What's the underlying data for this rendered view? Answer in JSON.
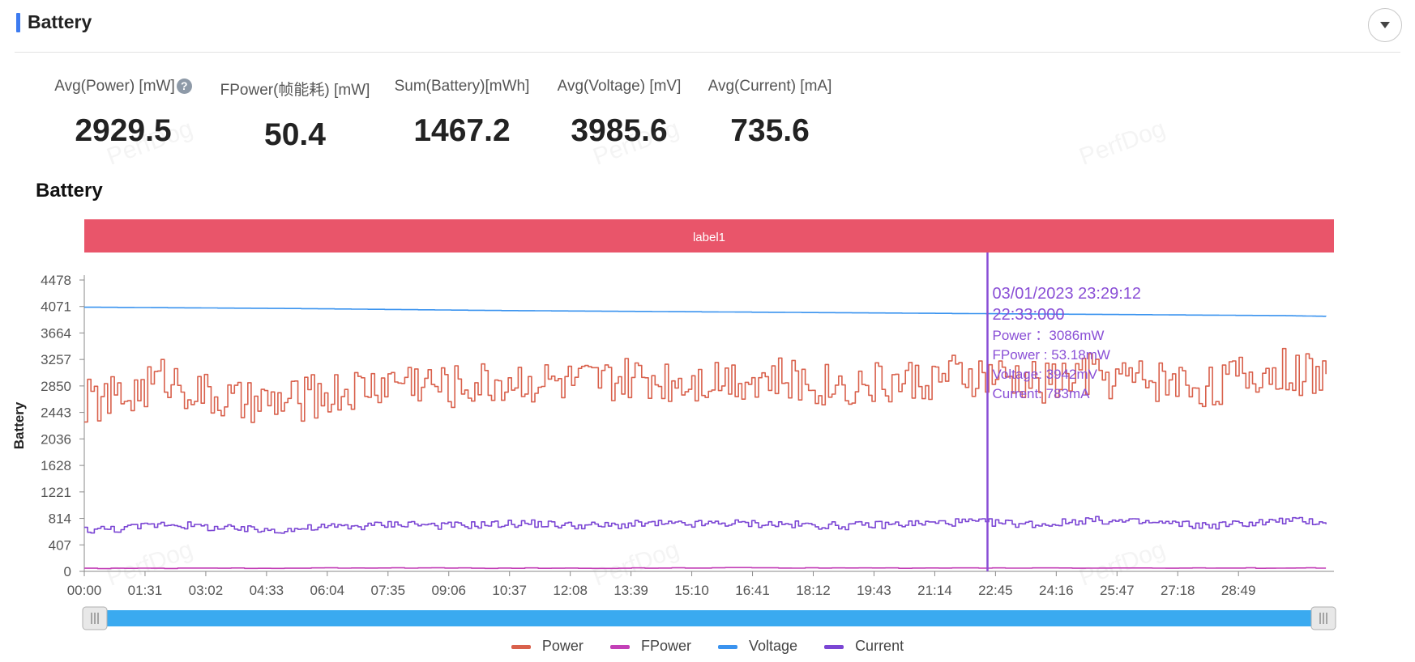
{
  "header": {
    "title": "Battery"
  },
  "metrics": [
    {
      "label": "Avg(Power) [mW]",
      "value": "2929.5",
      "help": true
    },
    {
      "label": "FPower(帧能耗) [mW]",
      "value": "50.4"
    },
    {
      "label": "Sum(Battery)[mWh]",
      "value": "1467.2"
    },
    {
      "label": "Avg(Voltage) [mV]",
      "value": "3985.6"
    },
    {
      "label": "Avg(Current) [mA]",
      "value": "735.6"
    }
  ],
  "watermark": "PerfDog",
  "chart_data": {
    "type": "line",
    "title": "Battery",
    "ylabel": "Battery",
    "xlabel": "",
    "label_band": {
      "text": "label1",
      "color": "#e9556a"
    },
    "x_ticks": [
      "00:00",
      "01:31",
      "03:02",
      "04:33",
      "06:04",
      "07:35",
      "09:06",
      "10:37",
      "12:08",
      "13:39",
      "15:10",
      "16:41",
      "18:12",
      "19:43",
      "21:14",
      "22:45",
      "24:16",
      "25:47",
      "27:18",
      "28:49"
    ],
    "x_range_seconds": [
      0,
      1872
    ],
    "y_ticks": [
      0,
      407,
      814,
      1221,
      1628,
      2036,
      2443,
      2850,
      3257,
      3664,
      4071,
      4478
    ],
    "ylim": [
      0,
      4478
    ],
    "grid": false,
    "legend_position": "bottom",
    "series": [
      {
        "name": "Power",
        "color": "#d9614c",
        "t": [
          0,
          60,
          120,
          180,
          240,
          300,
          360,
          420,
          480,
          540,
          600,
          660,
          720,
          780,
          840,
          900,
          960,
          1020,
          1080,
          1140,
          1200,
          1260,
          1320,
          1380,
          1440,
          1500,
          1560,
          1620,
          1680,
          1740,
          1800,
          1860
        ],
        "values": [
          2600,
          2680,
          3000,
          2700,
          2550,
          2600,
          2720,
          2820,
          2980,
          2840,
          2900,
          2950,
          2880,
          2900,
          2960,
          2950,
          3000,
          2970,
          2900,
          2880,
          2900,
          2950,
          3000,
          2950,
          2900,
          3040,
          2960,
          2950,
          2850,
          3000,
          3100,
          2950
        ]
      },
      {
        "name": "FPower",
        "color": "#c340b7",
        "t": [
          0,
          240,
          480,
          720,
          960,
          1200,
          1440,
          1680,
          1860
        ],
        "values": [
          45,
          50,
          52,
          48,
          55,
          50,
          53,
          50,
          52
        ]
      },
      {
        "name": "Voltage",
        "color": "#3a93ef",
        "t": [
          0,
          300,
          600,
          900,
          1200,
          1500,
          1800,
          1860
        ],
        "values": [
          4060,
          4040,
          4010,
          3990,
          3970,
          3950,
          3930,
          3920
        ]
      },
      {
        "name": "Current",
        "color": "#7b46d4",
        "t": [
          0,
          60,
          120,
          180,
          240,
          300,
          360,
          420,
          480,
          540,
          600,
          660,
          720,
          780,
          840,
          900,
          960,
          1020,
          1080,
          1140,
          1200,
          1260,
          1320,
          1380,
          1440,
          1500,
          1560,
          1620,
          1680,
          1740,
          1800,
          1860
        ],
        "values": [
          640,
          660,
          740,
          680,
          640,
          640,
          680,
          700,
          740,
          700,
          720,
          740,
          710,
          700,
          730,
          720,
          740,
          730,
          710,
          700,
          720,
          740,
          760,
          740,
          720,
          790,
          760,
          740,
          700,
          740,
          780,
          760
        ]
      }
    ],
    "tooltip": {
      "date": "03/01/2023 23:29:12",
      "time": "22:33:000",
      "time_seconds": 1353,
      "lines": [
        "Power ：3086mW",
        "FPower : 53.18mW",
        "Voltage: 3942mV",
        "Current: 783mA"
      ],
      "color": "#8a4fd6"
    },
    "zoom_slider": {
      "start_fraction": 0,
      "end_fraction": 1,
      "color": "#3aaaf0"
    }
  }
}
